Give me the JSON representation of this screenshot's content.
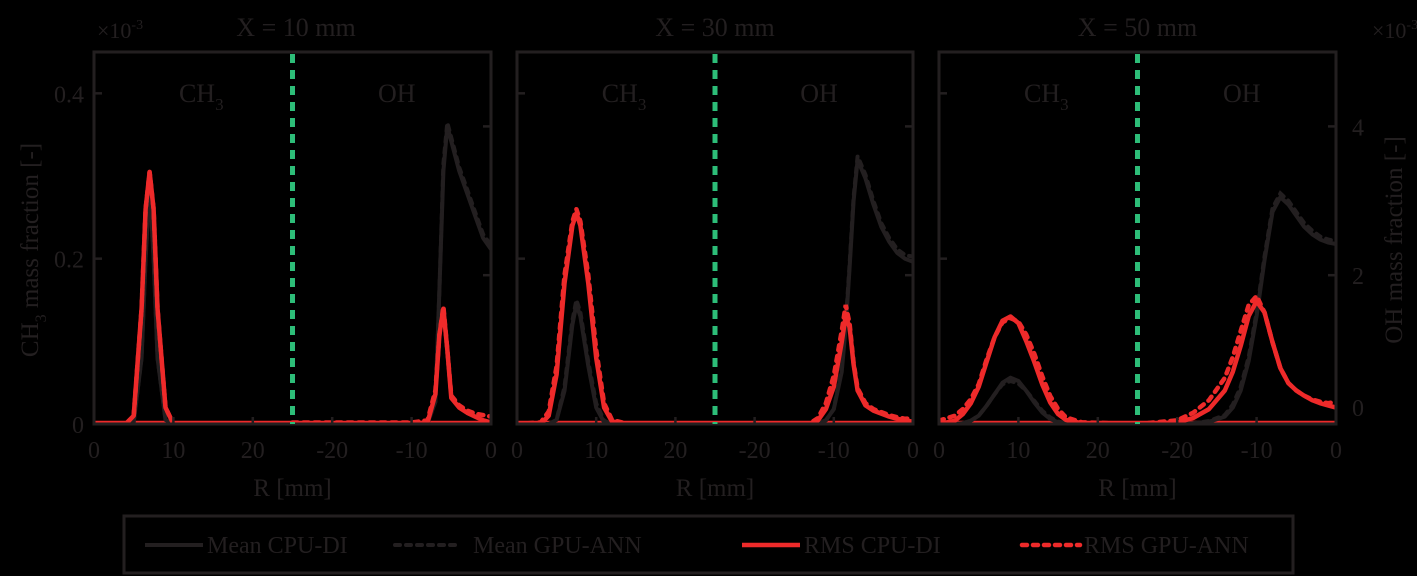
{
  "chart_data": {
    "type": "line",
    "figure": {
      "left_axis_label": "CH3 mass fraction [-]",
      "left_axis_multiplier": "×10-3",
      "right_axis_label": "OH mass fraction [-]",
      "right_axis_multiplier": "×10-3",
      "xlabel": "R [mm]",
      "divider_color": "#2dbd78",
      "colors": {
        "mean": "#231f20",
        "rms": "#ee2a2a"
      }
    },
    "legend": [
      {
        "label": "Mean CPU-DI",
        "style": "solid",
        "color": "#231f20"
      },
      {
        "label": "Mean GPU-ANN",
        "style": "dotted",
        "color": "#231f20"
      },
      {
        "label": "RMS CPU-DI",
        "style": "solid",
        "color": "#ee2a2a"
      },
      {
        "label": "RMS GPU-ANN",
        "style": "dotted",
        "color": "#ee2a2a"
      }
    ],
    "left_yaxis": {
      "ticks": [
        0,
        0.2,
        0.4
      ],
      "tick_labels": [
        "0",
        "0.2",
        "0.4"
      ],
      "ylim": [
        0,
        0.45
      ]
    },
    "right_yaxis": {
      "ticks": [
        0,
        2,
        4
      ],
      "tick_labels": [
        "0",
        "2",
        "4"
      ],
      "ylim": [
        0,
        5.0
      ]
    },
    "xaxis": {
      "tick_labels": [
        "0",
        "10",
        "20",
        "-20",
        "-10",
        "0"
      ],
      "note": "left half: CH3 vs R 0..25 mm; right half: OH vs R -25..0 mm"
    },
    "panels": [
      {
        "title": "X = 10 mm",
        "region_labels": [
          "CH3",
          "OH"
        ],
        "ch3": {
          "r": [
            0,
            4,
            5,
            6,
            6.5,
            7,
            7.5,
            8,
            9,
            10,
            12,
            25
          ],
          "mean_cpu": [
            0,
            0,
            0.002,
            0.08,
            0.2,
            0.29,
            0.2,
            0.08,
            0.005,
            0,
            0,
            0
          ],
          "mean_gpu": [
            0,
            0,
            0.002,
            0.08,
            0.2,
            0.29,
            0.2,
            0.08,
            0.005,
            0,
            0,
            0
          ],
          "rms_cpu": [
            0,
            0,
            0.01,
            0.14,
            0.26,
            0.305,
            0.26,
            0.14,
            0.02,
            0,
            0,
            0
          ],
          "rms_gpu": [
            0,
            0,
            0.01,
            0.14,
            0.26,
            0.305,
            0.26,
            0.14,
            0.02,
            0,
            0,
            0
          ]
        },
        "oh": {
          "r": [
            -25,
            -10,
            -8,
            -7,
            -6.5,
            -6,
            -5.5,
            -5,
            -4,
            -3,
            -2,
            -1,
            0
          ],
          "mean_cpu": [
            0,
            0,
            0.01,
            0.3,
            1.8,
            3.4,
            4.0,
            3.8,
            3.4,
            3.1,
            2.8,
            2.5,
            2.35
          ],
          "mean_gpu": [
            0,
            0,
            0.01,
            0.3,
            1.8,
            3.5,
            4.05,
            3.85,
            3.45,
            3.15,
            2.85,
            2.55,
            2.4
          ],
          "rms_cpu": [
            0,
            0,
            0.02,
            0.4,
            1.2,
            1.55,
            1.0,
            0.35,
            0.22,
            0.15,
            0.1,
            0.05,
            0.02
          ],
          "rms_gpu": [
            0.02,
            0.02,
            0.05,
            0.45,
            1.2,
            1.58,
            1.0,
            0.38,
            0.25,
            0.18,
            0.14,
            0.12,
            0.1
          ]
        }
      },
      {
        "title": "X = 30 mm",
        "region_labels": [
          "CH3",
          "OH"
        ],
        "ch3": {
          "r": [
            0,
            3,
            4,
            5,
            6,
            7,
            7.5,
            8,
            9,
            10,
            11,
            12,
            14,
            25
          ],
          "mean_cpu": [
            0,
            0,
            0,
            0.005,
            0.04,
            0.12,
            0.145,
            0.13,
            0.07,
            0.02,
            0.002,
            0,
            0,
            0
          ],
          "mean_gpu": [
            0,
            0,
            0,
            0.005,
            0.045,
            0.125,
            0.15,
            0.135,
            0.075,
            0.025,
            0.004,
            0,
            0,
            0
          ],
          "rms_cpu": [
            0,
            0,
            0.01,
            0.06,
            0.17,
            0.24,
            0.255,
            0.24,
            0.17,
            0.08,
            0.02,
            0.003,
            0,
            0
          ],
          "rms_gpu": [
            0,
            0.002,
            0.015,
            0.07,
            0.18,
            0.245,
            0.26,
            0.245,
            0.18,
            0.09,
            0.025,
            0.005,
            0,
            0
          ]
        },
        "oh": {
          "r": [
            -25,
            -13,
            -12,
            -11,
            -10,
            -9,
            -8.5,
            -8,
            -7.5,
            -7,
            -6,
            -5,
            -4,
            -3,
            -2,
            -1,
            0
          ],
          "mean_cpu": [
            0,
            0,
            0.01,
            0.05,
            0.2,
            0.7,
            1.3,
            2.1,
            3.0,
            3.55,
            3.3,
            2.95,
            2.65,
            2.45,
            2.3,
            2.22,
            2.18
          ],
          "mean_gpu": [
            0,
            0,
            0.01,
            0.05,
            0.2,
            0.75,
            1.35,
            2.15,
            3.05,
            3.6,
            3.35,
            3.0,
            2.7,
            2.5,
            2.35,
            2.27,
            2.25
          ],
          "rms_cpu": [
            0,
            0,
            0.05,
            0.2,
            0.5,
            1.1,
            1.45,
            1.3,
            0.8,
            0.45,
            0.25,
            0.18,
            0.14,
            0.1,
            0.07,
            0.05,
            0.03
          ],
          "rms_gpu": [
            0,
            0.01,
            0.08,
            0.28,
            0.65,
            1.25,
            1.6,
            1.35,
            0.82,
            0.48,
            0.28,
            0.2,
            0.16,
            0.12,
            0.09,
            0.07,
            0.08
          ]
        }
      },
      {
        "title": "X = 50 mm",
        "region_labels": [
          "CH3",
          "OH"
        ],
        "ch3": {
          "r": [
            0,
            2,
            3,
            4,
            5,
            6,
            7,
            8,
            9,
            10,
            11,
            12,
            13,
            14,
            15,
            16,
            18,
            25
          ],
          "mean_cpu": [
            0,
            0,
            0.001,
            0.004,
            0.01,
            0.022,
            0.036,
            0.05,
            0.056,
            0.052,
            0.04,
            0.026,
            0.014,
            0.006,
            0.002,
            0,
            0,
            0
          ],
          "mean_gpu": [
            0,
            0,
            0.001,
            0.004,
            0.01,
            0.022,
            0.036,
            0.048,
            0.052,
            0.049,
            0.04,
            0.028,
            0.016,
            0.008,
            0.003,
            0.001,
            0,
            0
          ],
          "rms_cpu": [
            0,
            0.004,
            0.012,
            0.025,
            0.045,
            0.075,
            0.105,
            0.125,
            0.13,
            0.122,
            0.1,
            0.075,
            0.048,
            0.026,
            0.012,
            0.005,
            0.001,
            0
          ],
          "rms_gpu": [
            0.004,
            0.01,
            0.018,
            0.03,
            0.048,
            0.078,
            0.105,
            0.123,
            0.128,
            0.124,
            0.108,
            0.085,
            0.058,
            0.034,
            0.018,
            0.008,
            0.002,
            0
          ]
        },
        "oh": {
          "r": [
            -25,
            -20,
            -18,
            -16,
            -14,
            -13,
            -12,
            -11,
            -10,
            -9,
            -8,
            -7,
            -6,
            -5,
            -4,
            -3,
            -2,
            -1,
            0
          ],
          "mean_cpu": [
            0,
            0,
            0.01,
            0.03,
            0.1,
            0.22,
            0.45,
            0.85,
            1.45,
            2.2,
            2.85,
            3.05,
            2.95,
            2.8,
            2.65,
            2.55,
            2.48,
            2.44,
            2.42
          ],
          "mean_gpu": [
            0,
            0,
            0.01,
            0.04,
            0.12,
            0.26,
            0.5,
            0.9,
            1.5,
            2.25,
            2.9,
            3.1,
            3.0,
            2.85,
            2.7,
            2.6,
            2.52,
            2.48,
            2.46
          ],
          "rms_cpu": [
            0,
            0.02,
            0.08,
            0.2,
            0.45,
            0.7,
            1.05,
            1.45,
            1.65,
            1.5,
            1.1,
            0.75,
            0.55,
            0.45,
            0.38,
            0.32,
            0.28,
            0.25,
            0.22
          ],
          "rms_gpu": [
            0,
            0.05,
            0.15,
            0.32,
            0.62,
            0.9,
            1.25,
            1.6,
            1.72,
            1.5,
            1.1,
            0.75,
            0.55,
            0.45,
            0.38,
            0.33,
            0.3,
            0.28,
            0.3
          ]
        }
      }
    ]
  }
}
